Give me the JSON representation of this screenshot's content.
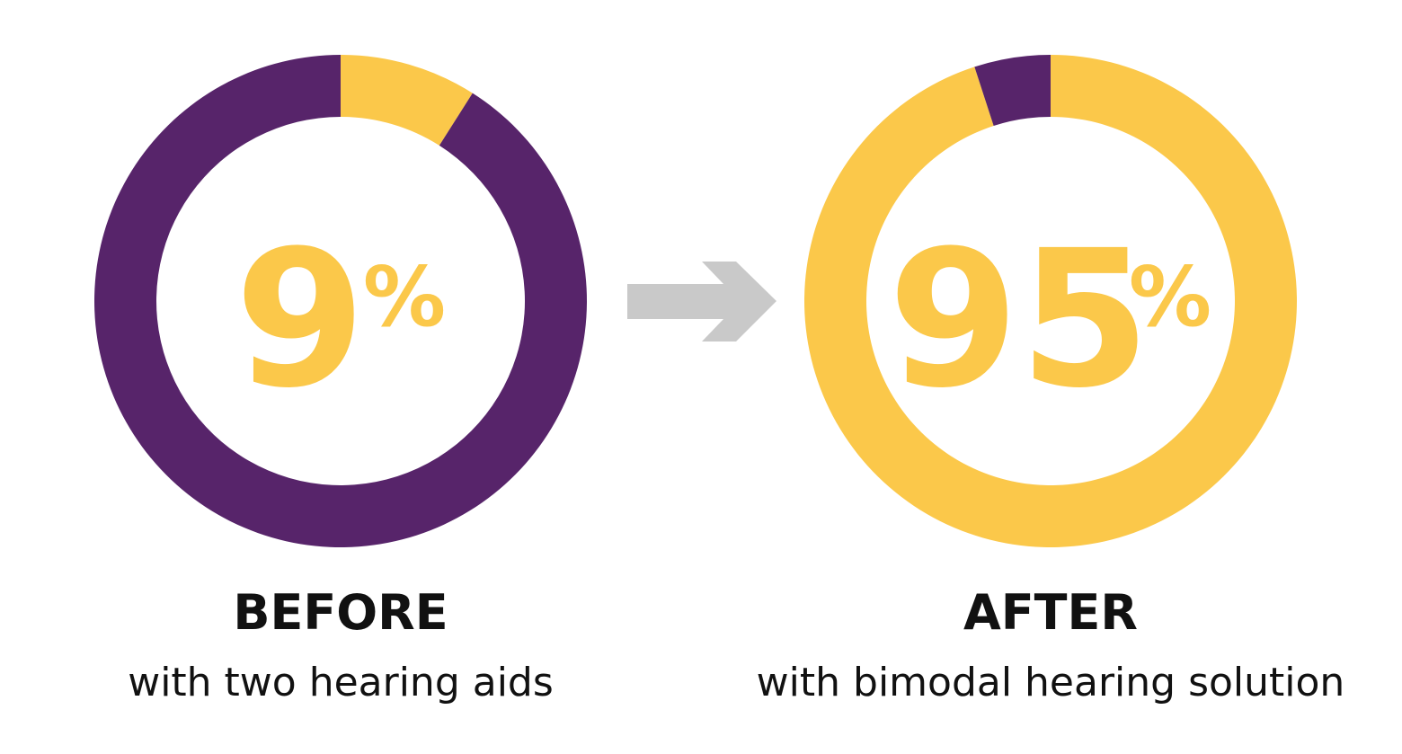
{
  "colors": {
    "yellow": "#FBC84A",
    "purple": "#57246A",
    "arrow": "#C9C9C9",
    "text": "#111111"
  },
  "arrow_icon": "right-arrow-icon",
  "chart_data": [
    {
      "type": "pie",
      "variant": "donut",
      "value_label": "9",
      "percent_sign": "%",
      "title": "BEFORE",
      "subtitle": "with two hearing aids",
      "slices": [
        {
          "value": 9,
          "color": "#FBC84A"
        },
        {
          "value": 91,
          "color": "#57246A"
        }
      ]
    },
    {
      "type": "pie",
      "variant": "donut",
      "value_label": "95",
      "percent_sign": "%",
      "title": "AFTER",
      "subtitle": "with bimodal hearing solution",
      "slices": [
        {
          "value": 95,
          "color": "#FBC84A"
        },
        {
          "value": 5,
          "color": "#57246A"
        }
      ]
    }
  ]
}
